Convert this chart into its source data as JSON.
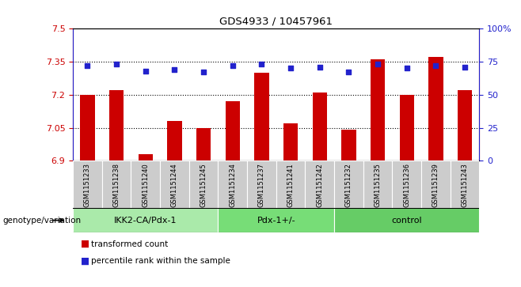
{
  "title": "GDS4933 / 10457961",
  "samples": [
    "GSM1151233",
    "GSM1151238",
    "GSM1151240",
    "GSM1151244",
    "GSM1151245",
    "GSM1151234",
    "GSM1151237",
    "GSM1151241",
    "GSM1151242",
    "GSM1151232",
    "GSM1151235",
    "GSM1151236",
    "GSM1151239",
    "GSM1151243"
  ],
  "bar_values": [
    7.2,
    7.22,
    6.93,
    7.08,
    7.05,
    7.17,
    7.3,
    7.07,
    7.21,
    7.04,
    7.36,
    7.2,
    7.37,
    7.22
  ],
  "percentile_values": [
    72,
    73,
    68,
    69,
    67,
    72,
    73,
    70,
    71,
    67,
    73,
    70,
    72,
    71
  ],
  "ylim_left": [
    6.9,
    7.5
  ],
  "ylim_right": [
    0,
    100
  ],
  "yticks_left": [
    6.9,
    7.05,
    7.2,
    7.35,
    7.5
  ],
  "yticks_right": [
    0,
    25,
    50,
    75,
    100
  ],
  "bar_color": "#cc0000",
  "dot_color": "#2222cc",
  "bar_bottom": 6.9,
  "groups": [
    {
      "label": "IKK2-CA/Pdx-1",
      "start": 0,
      "end": 5,
      "color": "#aaeaaa"
    },
    {
      "label": "Pdx-1+/-",
      "start": 5,
      "end": 9,
      "color": "#77dd77"
    },
    {
      "label": "control",
      "start": 9,
      "end": 14,
      "color": "#66cc66"
    }
  ],
  "xlabel_genotype": "genotype/variation",
  "legend_bar": "transformed count",
  "legend_dot": "percentile rank within the sample",
  "grid_yticks": [
    7.05,
    7.2,
    7.35
  ],
  "cell_color": "#cccccc",
  "plot_bg": "#ffffff"
}
